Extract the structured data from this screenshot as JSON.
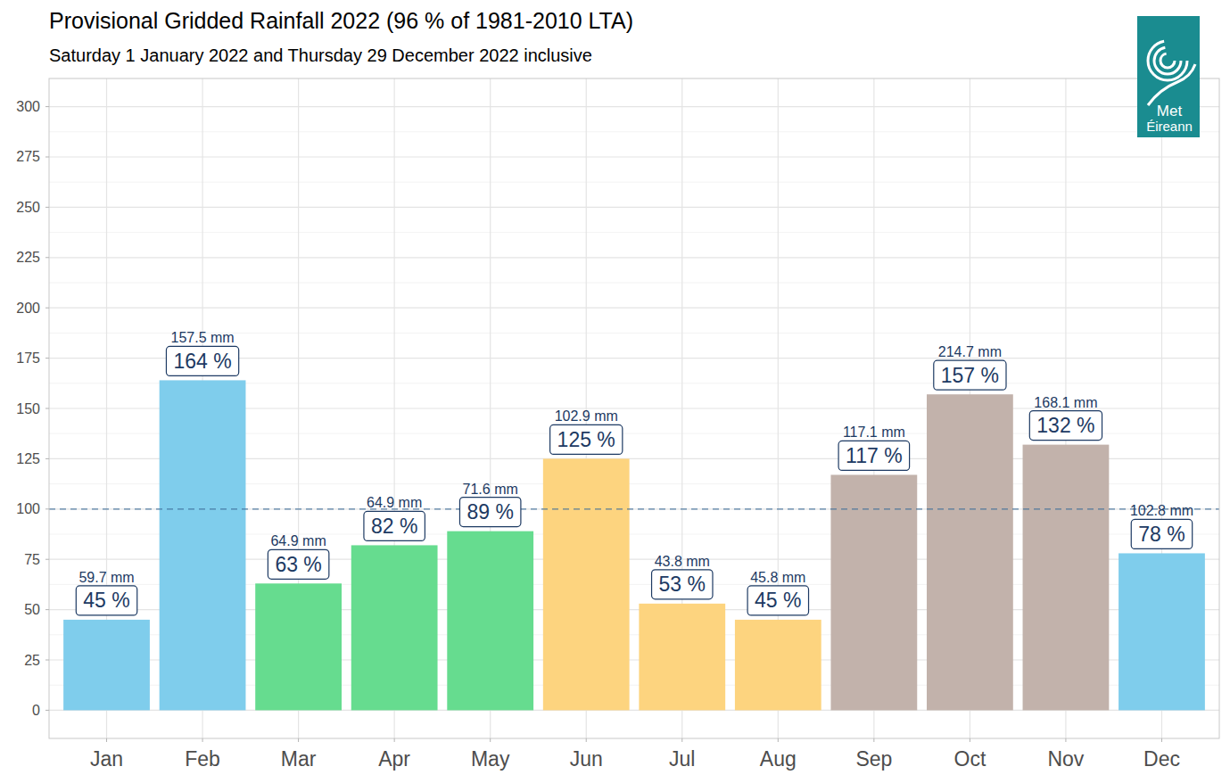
{
  "chart_data": {
    "type": "bar",
    "title": "Provisional Gridded Rainfall 2022 (96 % of 1981-2010 LTA)",
    "subtitle": "Saturday 1 January 2022 and Thursday 29 December 2022 inclusive",
    "categories": [
      "Jan",
      "Feb",
      "Mar",
      "Apr",
      "May",
      "Jun",
      "Jul",
      "Aug",
      "Sep",
      "Oct",
      "Nov",
      "Dec"
    ],
    "values": [
      45,
      164,
      63,
      82,
      89,
      125,
      53,
      45,
      117,
      157,
      132,
      78
    ],
    "value_labels": [
      "45 %",
      "164 %",
      "63 %",
      "82 %",
      "89 %",
      "125 %",
      "53 %",
      "45 %",
      "117 %",
      "157 %",
      "132 %",
      "78 %"
    ],
    "rainfall_mm_labels": [
      "59.7 mm",
      "157.5 mm",
      "64.9 mm",
      "64.9 mm",
      "71.6 mm",
      "102.9 mm",
      "43.8 mm",
      "45.8 mm",
      "117.1 mm",
      "214.7 mm",
      "168.1 mm",
      "102.8 mm"
    ],
    "colors": [
      "#7fcdec",
      "#7fcdec",
      "#66dc8f",
      "#66dc8f",
      "#66dc8f",
      "#fdd47f",
      "#fdd47f",
      "#fdd47f",
      "#c2b2ab",
      "#c2b2ab",
      "#c2b2ab",
      "#7fcdec"
    ],
    "reference_line": 100,
    "ylim": [
      -14,
      314
    ],
    "yticks": [
      0,
      25,
      50,
      75,
      100,
      125,
      150,
      175,
      200,
      225,
      250,
      275,
      300
    ],
    "grid": true,
    "data_labels": true,
    "logo_text": [
      "Met",
      "Éireann"
    ]
  }
}
